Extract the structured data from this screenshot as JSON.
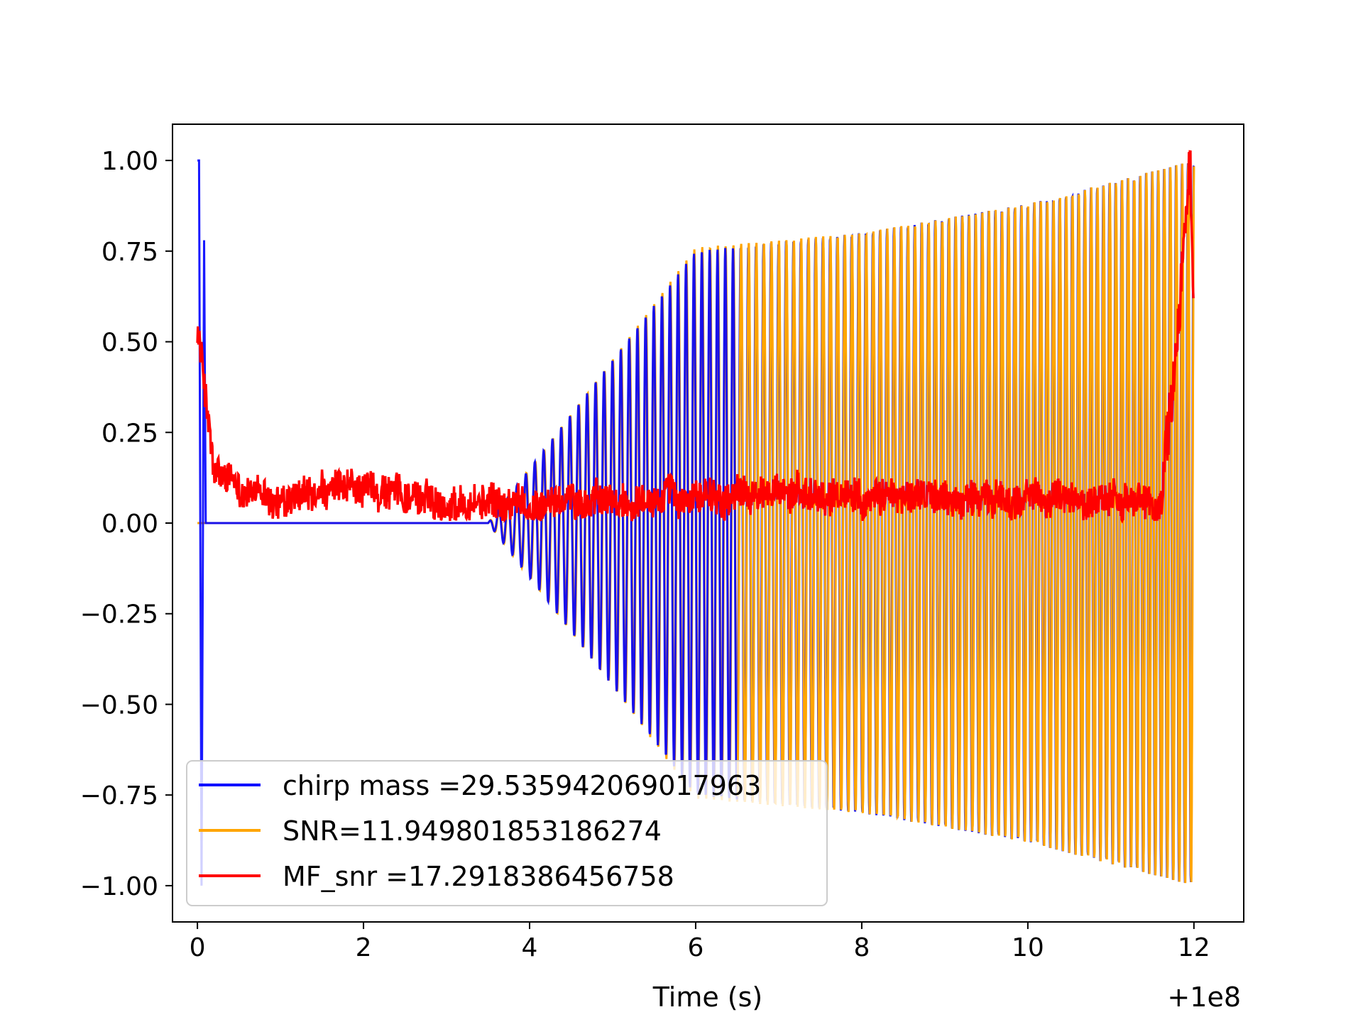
{
  "chart_data": {
    "type": "line",
    "title": "",
    "xlabel": "Time (s)",
    "ylabel": "",
    "x_offset_label": "+1e8",
    "xlim": [
      -0.3,
      12.6
    ],
    "ylim": [
      -1.1,
      1.1
    ],
    "xticks": [
      0,
      2,
      4,
      6,
      8,
      10,
      12
    ],
    "xtick_labels": [
      "0",
      "2",
      "4",
      "6",
      "8",
      "10",
      "12"
    ],
    "yticks": [
      1.0,
      0.75,
      0.5,
      0.25,
      0.0,
      -0.25,
      -0.5,
      -0.75,
      -1.0
    ],
    "ytick_labels": [
      "1.00",
      "0.75",
      "0.50",
      "0.25",
      "0.00",
      "−0.25",
      "−0.50",
      "−0.75",
      "−1.00"
    ],
    "grid": false,
    "legend_position": "lower-left",
    "series": [
      {
        "name": "chirp mass =29.535942069017963",
        "color": "#0000ff",
        "description_points": [
          {
            "x": 0.0,
            "y": 1.0
          },
          {
            "x": 0.02,
            "y": 1.0
          },
          {
            "x": 0.05,
            "y": -1.0
          },
          {
            "x": 0.08,
            "y": 0.78
          },
          {
            "x": 0.1,
            "y": 0.0
          },
          {
            "x": 3.5,
            "y": 0.0
          },
          {
            "x": 4.0,
            "y": 0.15
          },
          {
            "x": 5.0,
            "y": 0.45
          },
          {
            "x": 6.0,
            "y": 0.75
          },
          {
            "x": 8.0,
            "y": 0.8
          },
          {
            "x": 10.0,
            "y": 0.88
          },
          {
            "x": 12.0,
            "y": 1.0
          }
        ]
      },
      {
        "name": "SNR=11.949801853186274",
        "color": "#ffa500",
        "description_points": [
          {
            "x": 0.0,
            "y": 0.0
          },
          {
            "x": 3.5,
            "y": 0.0
          },
          {
            "x": 5.0,
            "y": 0.45
          },
          {
            "x": 6.0,
            "y": 0.76
          },
          {
            "x": 8.0,
            "y": 0.8
          },
          {
            "x": 10.0,
            "y": 0.88
          },
          {
            "x": 12.0,
            "y": 1.0
          }
        ]
      },
      {
        "name": "MF_snr =17.2918386456758",
        "color": "#ff0000",
        "description_points": [
          {
            "x": 0.0,
            "y": 0.55
          },
          {
            "x": 0.1,
            "y": 0.35
          },
          {
            "x": 0.2,
            "y": 0.13
          },
          {
            "x": 1.0,
            "y": 0.05
          },
          {
            "x": 2.0,
            "y": 0.1
          },
          {
            "x": 3.0,
            "y": 0.06
          },
          {
            "x": 4.0,
            "y": 0.05
          },
          {
            "x": 6.0,
            "y": 0.07
          },
          {
            "x": 8.0,
            "y": 0.08
          },
          {
            "x": 10.0,
            "y": 0.07
          },
          {
            "x": 11.6,
            "y": 0.05
          },
          {
            "x": 11.8,
            "y": 0.5
          },
          {
            "x": 11.95,
            "y": 1.0
          },
          {
            "x": 12.0,
            "y": 0.55
          }
        ]
      }
    ]
  }
}
